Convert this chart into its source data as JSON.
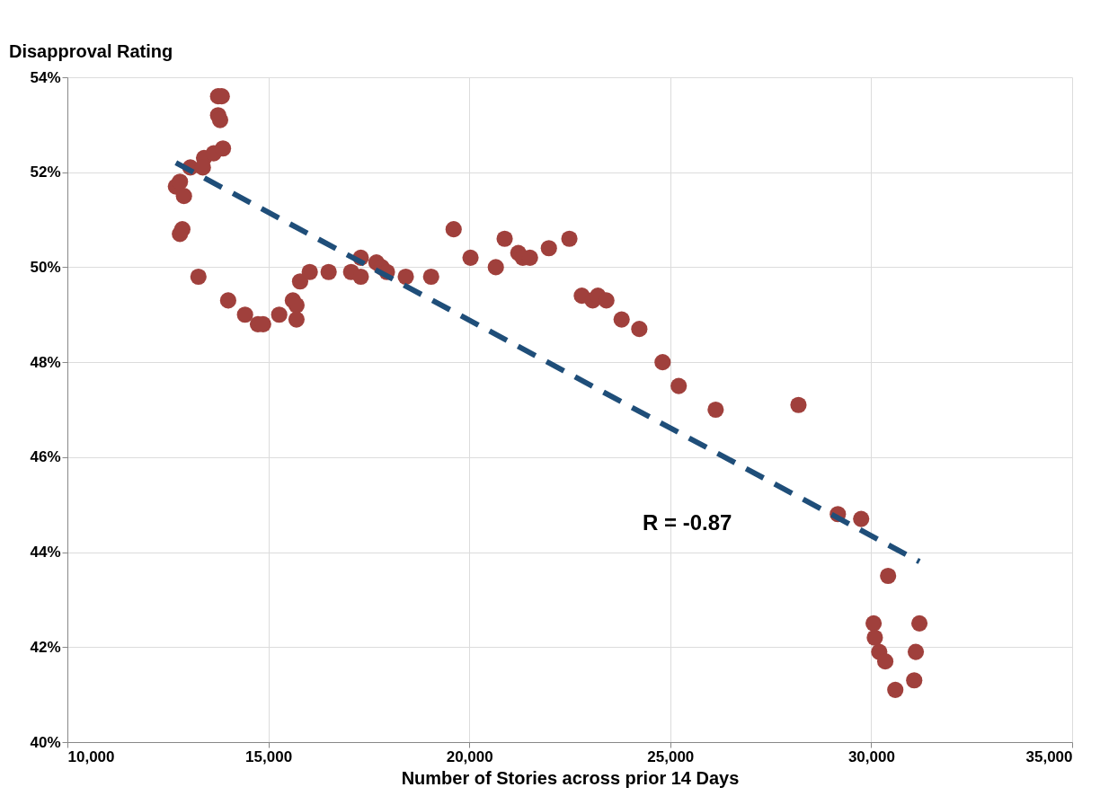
{
  "chart_data": {
    "type": "scatter",
    "ylabel": "Disapproval Rating",
    "xlabel": "Number of Stories across prior 14 Days",
    "xlim": [
      10000,
      35000
    ],
    "xticks": [
      {
        "value": 10000,
        "label": "10,000"
      },
      {
        "value": 15000,
        "label": "15,000"
      },
      {
        "value": 20000,
        "label": "20,000"
      },
      {
        "value": 25000,
        "label": "25,000"
      },
      {
        "value": 30000,
        "label": "30,000"
      },
      {
        "value": 35000,
        "label": "35,000"
      }
    ],
    "ylim": [
      40,
      54
    ],
    "yticks": [
      {
        "value": 40,
        "label": "40%"
      },
      {
        "value": 42,
        "label": "42%"
      },
      {
        "value": 44,
        "label": "44%"
      },
      {
        "value": 46,
        "label": "46%"
      },
      {
        "value": 48,
        "label": "48%"
      },
      {
        "value": 50,
        "label": "50%"
      },
      {
        "value": 52,
        "label": "52%"
      },
      {
        "value": 54,
        "label": "54%"
      }
    ],
    "grid": true,
    "annotations": [
      "R = -0.87"
    ],
    "series": [
      {
        "marker": "circle",
        "color": "#a0403c",
        "x": [
          12700,
          12800,
          12900,
          12800,
          12860,
          13060,
          13260,
          13400,
          13370,
          13640,
          13750,
          13840,
          13750,
          13800,
          13870,
          14000,
          14420,
          14740,
          14870,
          15270,
          15610,
          15700,
          15700,
          15790,
          16030,
          16500,
          17060,
          17300,
          17300,
          17690,
          17820,
          17950,
          18420,
          19050,
          19610,
          20030,
          20660,
          20880,
          21220,
          21330,
          21510,
          21980,
          22490,
          22800,
          23070,
          23200,
          23410,
          23790,
          24230,
          24810,
          25210,
          26130,
          28190,
          29170,
          29750,
          30420,
          30060,
          30090,
          30200,
          30350,
          30600,
          31070,
          31110,
          31200
        ],
        "values": [
          51.7,
          51.8,
          51.5,
          50.7,
          50.8,
          52.1,
          49.8,
          52.3,
          52.1,
          52.4,
          53.6,
          53.6,
          53.2,
          53.1,
          52.5,
          49.3,
          49.0,
          48.8,
          48.8,
          49.0,
          49.3,
          49.2,
          48.9,
          49.7,
          49.9,
          49.9,
          49.9,
          50.2,
          49.8,
          50.1,
          50.0,
          49.9,
          49.8,
          49.8,
          50.8,
          50.2,
          50.0,
          50.6,
          50.3,
          50.2,
          50.2,
          50.4,
          50.6,
          49.4,
          49.3,
          49.4,
          49.3,
          48.9,
          48.7,
          48.0,
          47.5,
          47.0,
          47.1,
          44.8,
          44.7,
          43.5,
          42.5,
          42.2,
          41.9,
          41.7,
          41.1,
          41.3,
          41.9,
          42.5
        ]
      },
      {
        "type": "line",
        "marker": "none",
        "line_style": "dashed",
        "color": "#1f4e79",
        "x": [
          12700,
          31200
        ],
        "values": [
          52.2,
          43.8
        ]
      }
    ]
  }
}
